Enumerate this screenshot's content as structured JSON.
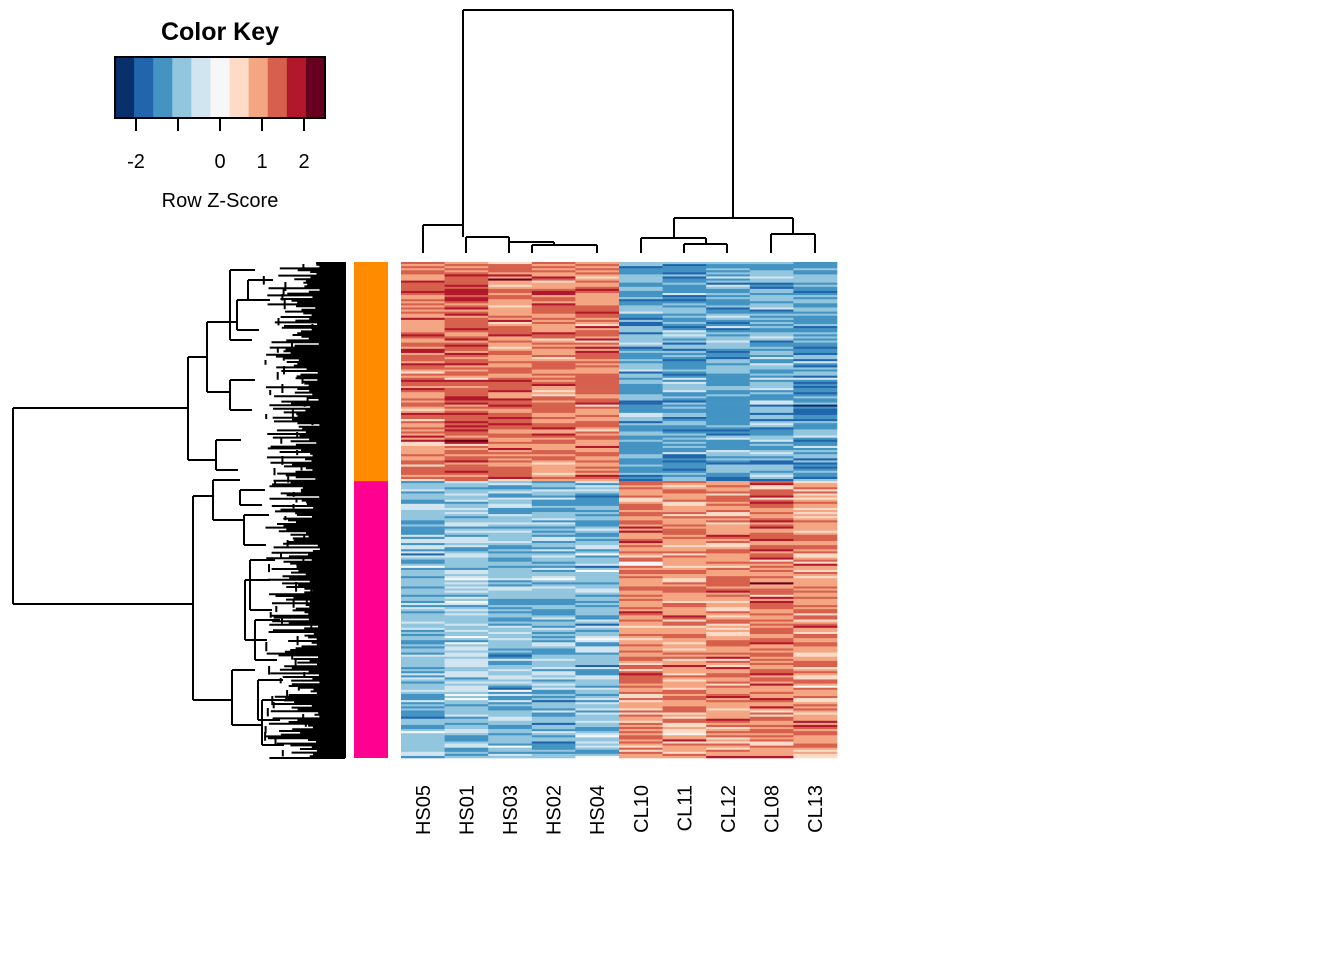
{
  "chart_data": {
    "type": "heatmap",
    "title": "",
    "color_key": {
      "title": "Color Key",
      "xlabel": "Row Z-Score",
      "range": [
        -2.5,
        2.5
      ],
      "ticks": [
        -2,
        0,
        1,
        2
      ],
      "tick_labels": [
        "-2",
        "0",
        "1",
        "2"
      ],
      "minor_ticks": [
        -1
      ],
      "breaks": 12,
      "palette": [
        "#08306b",
        "#2166ac",
        "#4393c3",
        "#92c5de",
        "#d1e5f0",
        "#f7f7f7",
        "#fddbc7",
        "#f4a582",
        "#d6604d",
        "#b2182b",
        "#67001f"
      ]
    },
    "columns": [
      "HS05",
      "HS01",
      "HS03",
      "HS02",
      "HS04",
      "CL10",
      "CL11",
      "CL12",
      "CL08",
      "CL13"
    ],
    "row_groups": [
      {
        "color": "#ff8c00",
        "fraction": 0.44,
        "hs_mean": 1.15,
        "cl_mean": -1.15
      },
      {
        "color": "#ff0090",
        "fraction": 0.56,
        "hs_mean": -1.0,
        "cl_mean": 1.1
      }
    ],
    "column_groups": [
      {
        "label": "HS",
        "members": [
          "HS05",
          "HS01",
          "HS03",
          "HS02",
          "HS04"
        ]
      },
      {
        "label": "CL",
        "members": [
          "CL10",
          "CL11",
          "CL12",
          "CL08",
          "CL13"
        ]
      }
    ],
    "column_dendrogram": "((HS05,(HS01,(HS03,(HS02,HS04)))),((CL10,(CL11,CL12)),(CL08,CL13)))",
    "row_dendrogram": "two main clusters matching the row groups; dense hierarchical subclusters"
  }
}
